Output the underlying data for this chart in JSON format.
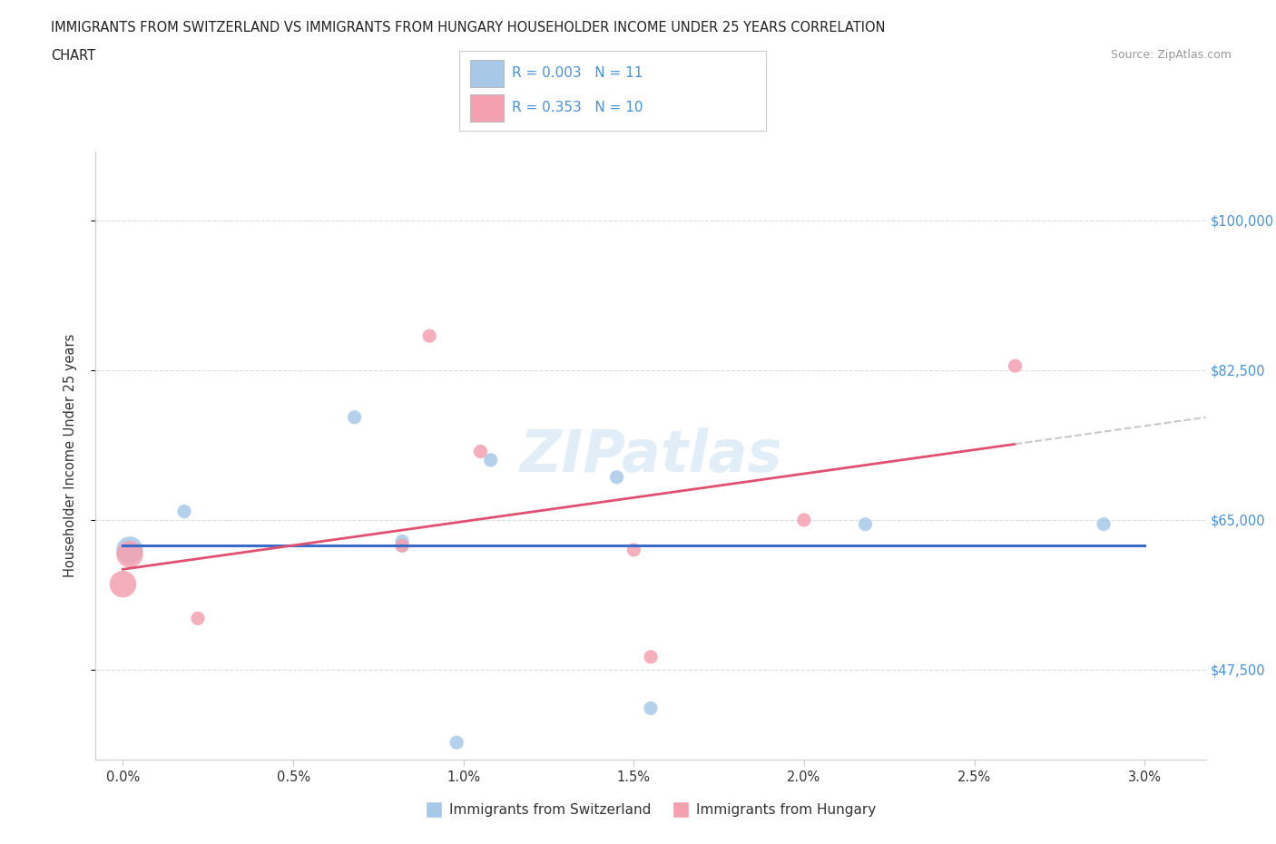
{
  "title_line1": "IMMIGRANTS FROM SWITZERLAND VS IMMIGRANTS FROM HUNGARY HOUSEHOLDER INCOME UNDER 25 YEARS CORRELATION",
  "title_line2": "CHART",
  "source": "Source: ZipAtlas.com",
  "ylabel": "Householder Income Under 25 years",
  "xtick_labels": [
    "0.0%",
    "0.5%",
    "1.0%",
    "1.5%",
    "2.0%",
    "2.5%",
    "3.0%"
  ],
  "xtick_vals": [
    0.0,
    0.5,
    1.0,
    1.5,
    2.0,
    2.5,
    3.0
  ],
  "ytick_labels": [
    "$47,500",
    "$65,000",
    "$82,500",
    "$100,000"
  ],
  "ytick_vals": [
    47500,
    65000,
    82500,
    100000
  ],
  "xlim": [
    -0.08,
    3.18
  ],
  "ylim": [
    37000,
    108000
  ],
  "swiss_x": [
    0.02,
    0.18,
    0.68,
    0.82,
    1.08,
    1.45,
    1.55,
    2.18,
    2.88,
    0.82,
    0.98
  ],
  "swiss_y": [
    61500,
    66000,
    77000,
    62500,
    72000,
    70000,
    43000,
    64500,
    64500,
    62000,
    39000
  ],
  "hungary_x": [
    0.02,
    0.22,
    0.82,
    0.9,
    1.05,
    1.5,
    1.55,
    2.0,
    2.62,
    0.0
  ],
  "hungary_y": [
    61000,
    53500,
    62000,
    86500,
    73000,
    61500,
    49000,
    65000,
    83000,
    57500
  ],
  "swiss_color": "#a8c8e8",
  "hungary_color": "#f4a0b0",
  "swiss_line_color": "#3a6bc8",
  "hungary_line_color": "#e05070",
  "dash_color": "#c8c8c8",
  "swiss_R": "0.003",
  "swiss_N": "11",
  "hungary_R": "0.353",
  "hungary_N": "10",
  "watermark": "ZIPatlas",
  "legend_label_swiss": "Immigrants from Switzerland",
  "legend_label_hungary": "Immigrants from Hungary",
  "background_color": "#ffffff",
  "grid_color": "#dddddd",
  "spine_color": "#cccccc",
  "text_color": "#333333",
  "source_color": "#999999",
  "right_label_color": "#4a90d9"
}
